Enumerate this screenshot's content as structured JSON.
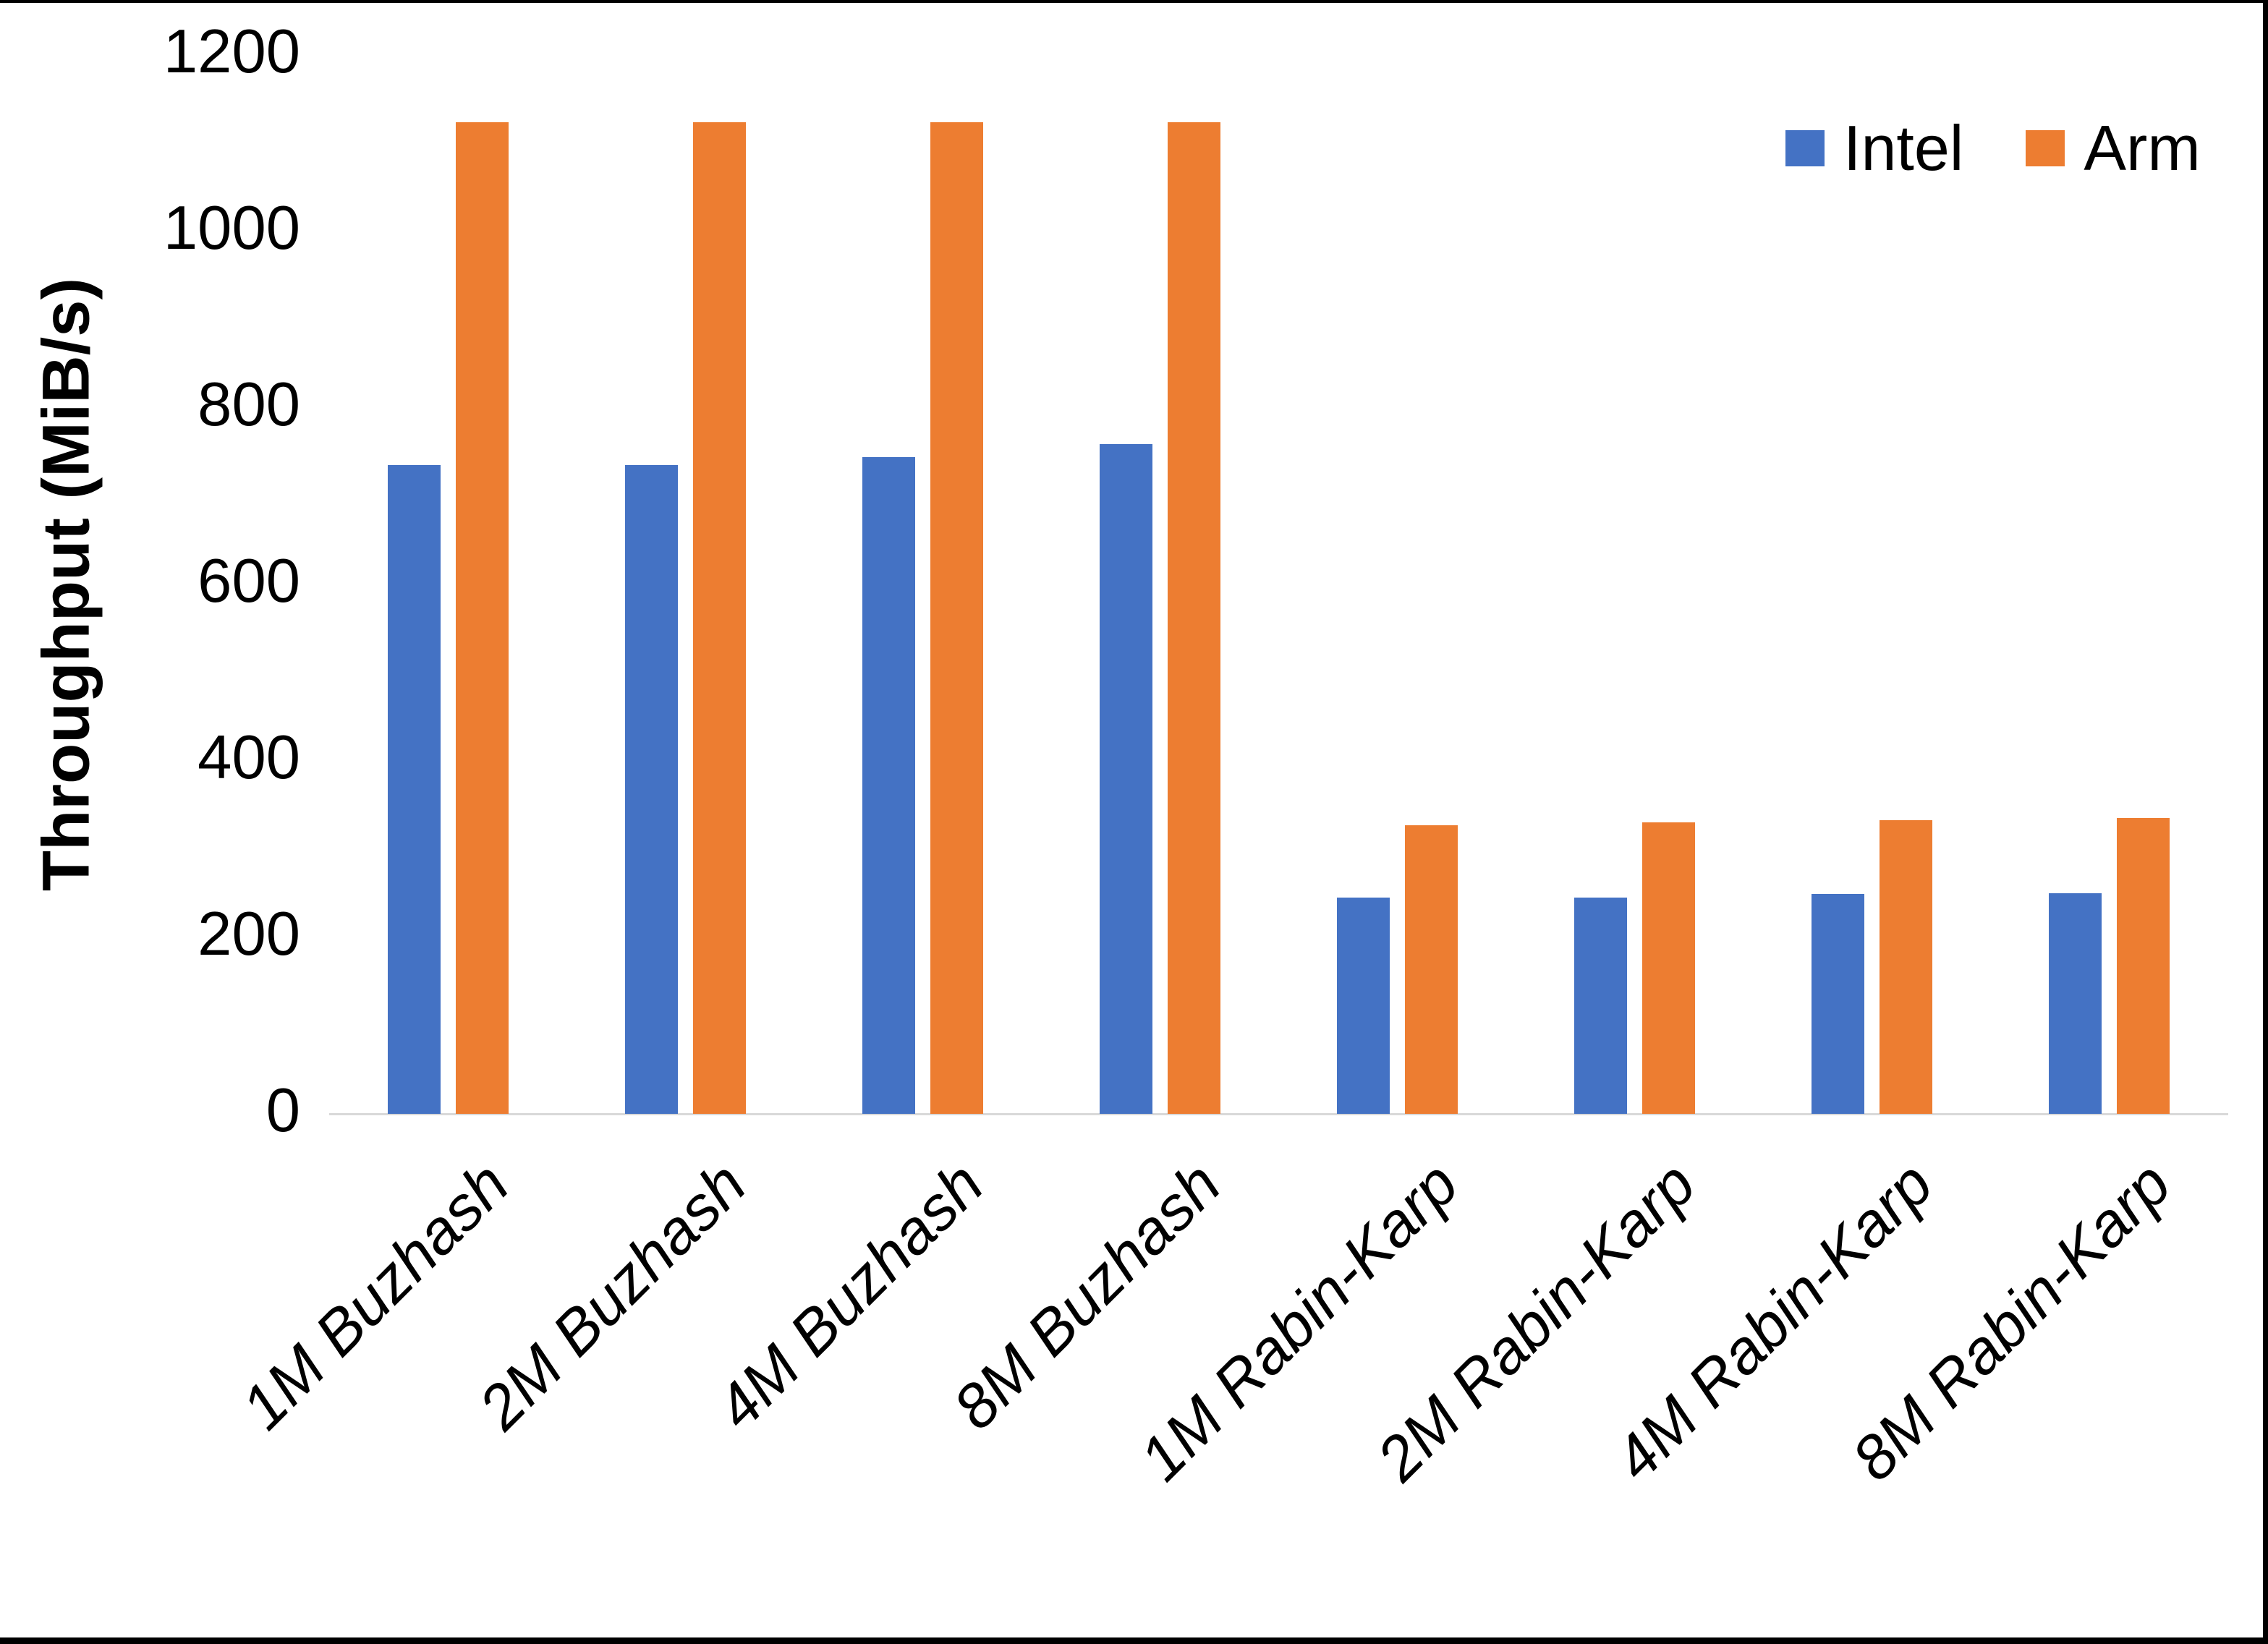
{
  "chart_data": {
    "type": "bar",
    "title": "",
    "xlabel": "",
    "ylabel": "Throughput (MiB/s)",
    "categories": [
      "1M Buzhash",
      "2M Buzhash",
      "4M Buzhash",
      "8M Buzhash",
      "1M Rabin-Karp",
      "2M Rabin-Karp",
      "4M Rabin-Karp",
      "8M Rabin-Karp"
    ],
    "series": [
      {
        "name": "Intel",
        "color": "#4472C4",
        "values": [
          735,
          735,
          744,
          759,
          245,
          245,
          249,
          250
        ]
      },
      {
        "name": "Arm",
        "color": "#ED7D31",
        "values": [
          1124,
          1124,
          1124,
          1124,
          327,
          330,
          333,
          335
        ]
      }
    ],
    "ylim": [
      0,
      1200
    ],
    "ytick_interval": 200,
    "ytick_labels_top_to_bottom": [
      "1200",
      "1000",
      "800",
      "600",
      "400",
      "200",
      "0"
    ],
    "grid": false,
    "legend_position": "top-right",
    "axis_line_color": "#D9D9D9",
    "text_color": "#000000",
    "background_color": "#FFFFFF",
    "frame_border_color": "#000000"
  }
}
